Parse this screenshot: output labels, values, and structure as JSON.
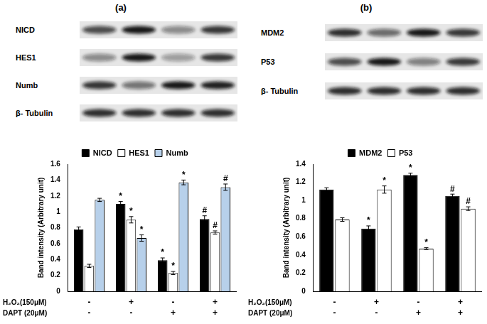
{
  "figure": {
    "panels": [
      {
        "letter": "(a)",
        "blots": [
          "NICD",
          "HES1",
          "Numb",
          "β- Tubulin"
        ]
      },
      {
        "letter": "(b)",
        "blots": [
          "MDM2",
          "P53",
          "β- Tubulin"
        ]
      }
    ]
  },
  "chart_data": [
    {
      "type": "bar",
      "y_label": "Band intensity (Arbitrary unit)",
      "categories": [
        null,
        null,
        null,
        null
      ],
      "series": [
        {
          "name": "NICD",
          "color": "#000000",
          "values": [
            0.78,
            1.1,
            0.39,
            0.91
          ],
          "errors": [
            0.03,
            0.03,
            0.03,
            0.04
          ],
          "annotations": [
            null,
            "*",
            "*",
            "#"
          ]
        },
        {
          "name": "HES1",
          "color": "#ffffff",
          "values": [
            0.32,
            0.9,
            0.23,
            0.74
          ],
          "errors": [
            0.02,
            0.04,
            0.02,
            0.02
          ],
          "annotations": [
            null,
            "*",
            "*",
            "#"
          ]
        },
        {
          "name": "Numb",
          "color": "#b7d0ea",
          "values": [
            1.15,
            0.67,
            1.37,
            1.31
          ],
          "errors": [
            0.02,
            0.04,
            0.03,
            0.04
          ],
          "annotations": [
            null,
            "*",
            "*",
            "#"
          ]
        }
      ],
      "conditions": [
        {
          "label": "H₂O₂(150μM)",
          "values": [
            "-",
            "+",
            "-",
            "+"
          ]
        },
        {
          "label": "DAPT (20μM)",
          "values": [
            "-",
            "-",
            "+",
            "+"
          ]
        }
      ],
      "ylim": [
        0,
        1.6
      ],
      "yticks": [
        0,
        0.2,
        0.4,
        0.6,
        0.8,
        1,
        1.2,
        1.4,
        1.6
      ],
      "grid": false,
      "legend": "top",
      "tick_labels": "y"
    },
    {
      "type": "bar",
      "y_label": "Band intensity (Arbitrary unit)",
      "categories": [
        null,
        null,
        null,
        null
      ],
      "series": [
        {
          "name": "MDM2",
          "color": "#000000",
          "values": [
            1.12,
            0.69,
            1.28,
            1.05
          ],
          "errors": [
            0.02,
            0.03,
            0.02,
            0.02
          ],
          "annotations": [
            null,
            "*",
            "*",
            "#"
          ]
        },
        {
          "name": "P53",
          "color": "#ffffff",
          "values": [
            0.79,
            1.12,
            0.47,
            0.91
          ],
          "errors": [
            0.02,
            0.04,
            0.01,
            0.02
          ],
          "annotations": [
            null,
            "*",
            "*",
            "#"
          ]
        }
      ],
      "conditions": [
        {
          "label": "H₂O₂(150μM)",
          "values": [
            "-",
            "+",
            "-",
            "+"
          ]
        },
        {
          "label": "DAPT (20μM)",
          "values": [
            "-",
            "-",
            "+",
            "+"
          ]
        }
      ],
      "ylim": [
        0,
        1.4
      ],
      "yticks": [
        0,
        0.2,
        0.4,
        0.6,
        0.8,
        1,
        1.2,
        1.4
      ],
      "grid": false,
      "legend": "top",
      "tick_labels": "y"
    }
  ]
}
